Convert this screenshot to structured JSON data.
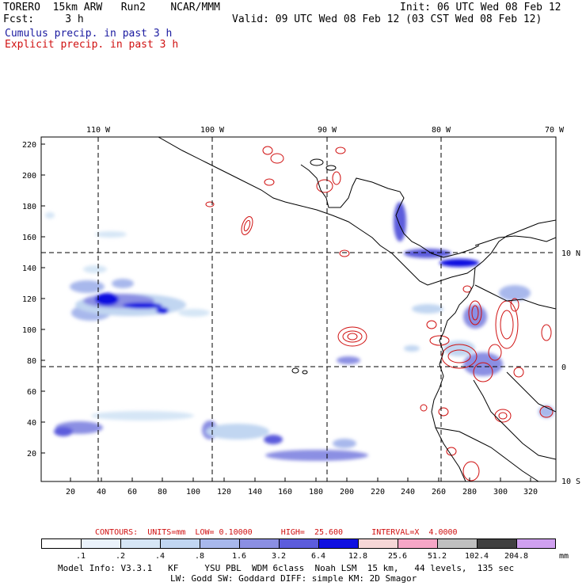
{
  "header": {
    "model": "TORERO  15km ARW   Run2    NCAR/MMM",
    "init": "Init: 06 UTC Wed 08 Feb 12",
    "fcst": "Fcst:     3 h",
    "valid": "Valid: 09 UTC Wed 08 Feb 12 (03 CST Wed 08 Feb 12)",
    "cumulus_label": "Cumulus precip. in past 3 h",
    "explicit_label": "Explicit precip. in past 3 h"
  },
  "colors": {
    "cumulus": "#1a1aa0",
    "explicit": "#d01010",
    "coast": "#000000"
  },
  "axes": {
    "y_ticks": [
      "220",
      "200",
      "180",
      "160",
      "140",
      "120",
      "100",
      "80",
      "60",
      "40",
      "20"
    ],
    "x_ticks": [
      "20",
      "40",
      "60",
      "80",
      "100",
      "120",
      "140",
      "160",
      "180",
      "200",
      "220",
      "240",
      "260",
      "280",
      "300",
      "320"
    ],
    "lon_labels": [
      "110 W",
      "100 W",
      "90 W",
      "80 W",
      "70 W"
    ],
    "lat_labels": [
      "10 N",
      "0",
      "10 S"
    ]
  },
  "contours_line": "CONTOURS:  UNITS=mm  LOW= 0.10000      HIGH=  25.600      INTERVAL=X  4.0000",
  "colorbar": {
    "colors": [
      "#ffffff",
      "#eaf2fb",
      "#d6e6f6",
      "#c1d6f1",
      "#a8b8ec",
      "#8b8fe3",
      "#5c5cdc",
      "#1010e0",
      "#f6d6d6",
      "#f6a6c6",
      "#c0c0c0",
      "#404040",
      "#d0a0f0"
    ],
    "labels": [
      ".1",
      ".2",
      ".4",
      ".8",
      "1.6",
      "3.2",
      "6.4",
      "12.8",
      "25.6",
      "51.2",
      "102.4",
      "204.8"
    ],
    "unit": "mm"
  },
  "footer": {
    "line1": "Model Info: V3.3.1   KF     YSU PBL  WDM 6class  Noah LSM  15 km,   44 levels,  135 sec",
    "line2": "LW: Godd SW: Goddard DIFF: simple KM: 2D Smagor"
  }
}
